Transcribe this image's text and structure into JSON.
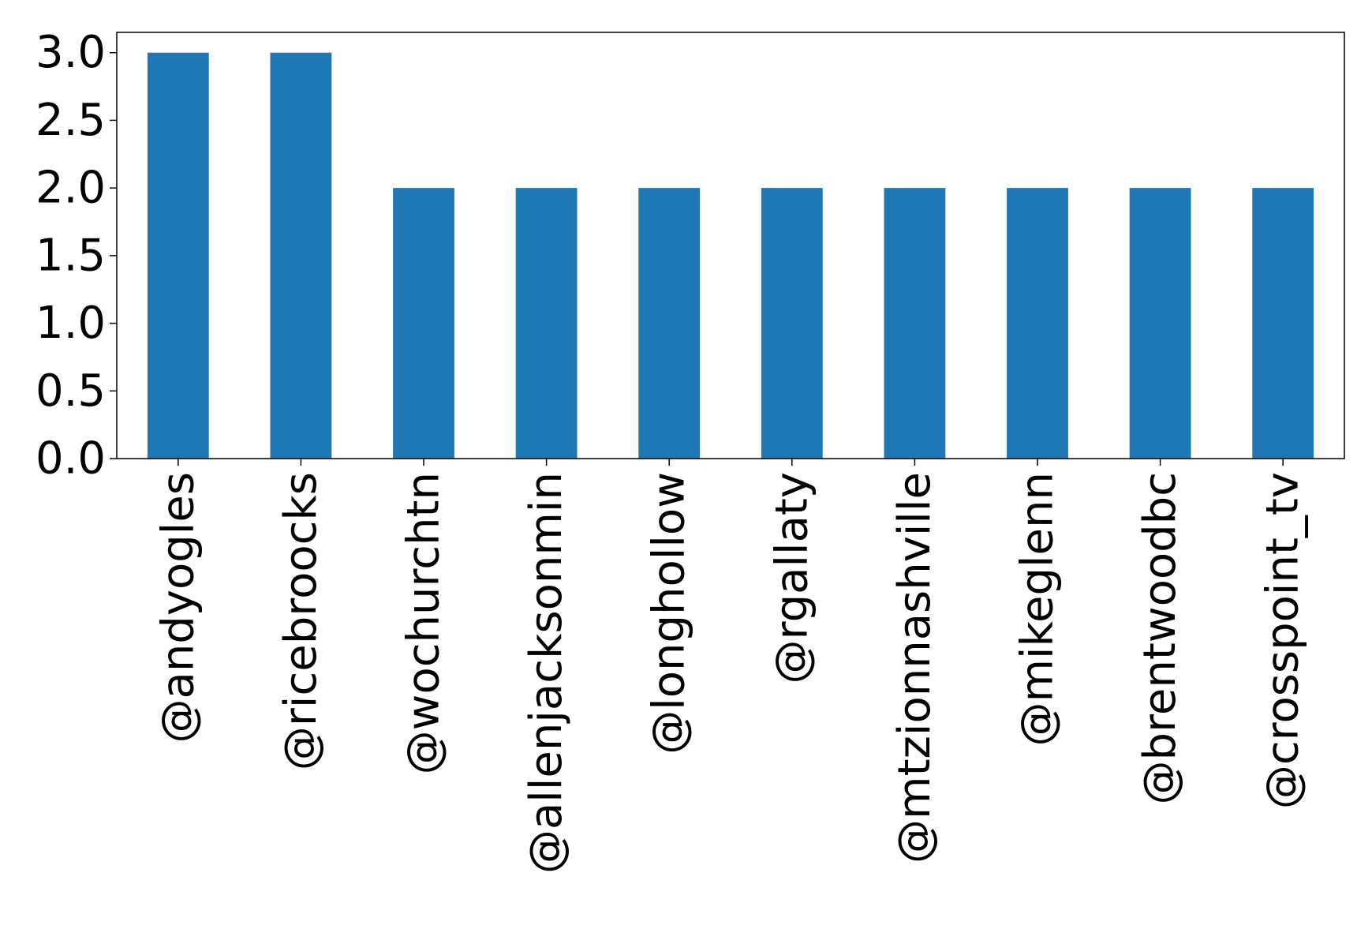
{
  "chart_data": {
    "type": "bar",
    "categories": [
      "@andyogles",
      "@ricebroocks",
      "@wochurchtn",
      "@allenjacksonmin",
      "@longhollow",
      "@rgallaty",
      "@mtzionnashville",
      "@mikeglenn",
      "@brentwoodbc",
      "@crosspoint_tv"
    ],
    "values": [
      3,
      3,
      2,
      2,
      2,
      2,
      2,
      2,
      2,
      2
    ],
    "yticks": [
      "0.0",
      "0.5",
      "1.0",
      "1.5",
      "2.0",
      "2.5",
      "3.0"
    ],
    "ylim": [
      0,
      3.15
    ],
    "grid": false,
    "bar_color": "#1f77b4"
  }
}
